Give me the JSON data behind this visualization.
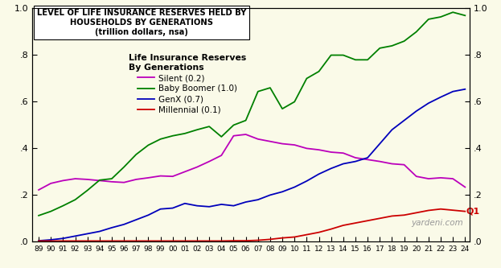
{
  "title_line1": "LEVEL OF LIFE INSURANCE RESERVES HELD BY",
  "title_line2": "HOUSEHOLDS BY GENERATIONS",
  "title_line3": "(trillion dollars, nsa)",
  "legend_title": "Life Insurance Reserves\nBy Generations",
  "background_color": "#FAFAE8",
  "watermark": "yardeni.com",
  "q1_label": "Q1",
  "xlim": [
    1988.5,
    2024.4
  ],
  "ylim": [
    0.0,
    1.0
  ],
  "yticks": [
    0.0,
    0.2,
    0.4,
    0.6,
    0.8,
    1.0
  ],
  "ytick_labels": [
    ".0",
    ".2",
    ".4",
    ".6",
    ".8",
    "1.0"
  ],
  "xtick_positions": [
    1989,
    1990,
    1991,
    1992,
    1993,
    1994,
    1995,
    1996,
    1997,
    1998,
    1999,
    2000,
    2001,
    2002,
    2003,
    2004,
    2005,
    2006,
    2007,
    2008,
    2009,
    2010,
    2011,
    2012,
    2013,
    2014,
    2015,
    2016,
    2017,
    2018,
    2019,
    2020,
    2021,
    2022,
    2023,
    2024
  ],
  "xtick_labels": [
    "89",
    "90",
    "91",
    "92",
    "93",
    "94",
    "95",
    "96",
    "97",
    "98",
    "99",
    "00",
    "01",
    "02",
    "03",
    "04",
    "05",
    "06",
    "07",
    "08",
    "09",
    "10",
    "11",
    "12",
    "13",
    "14",
    "15",
    "16",
    "17",
    "18",
    "19",
    "20",
    "21",
    "22",
    "23",
    "24"
  ],
  "series": {
    "silent": {
      "label": "Silent (0.2)",
      "color": "#BB00BB",
      "x": [
        1989,
        1990,
        1991,
        1992,
        1993,
        1994,
        1995,
        1996,
        1997,
        1998,
        1999,
        2000,
        2001,
        2002,
        2003,
        2004,
        2005,
        2006,
        2007,
        2008,
        2009,
        2010,
        2011,
        2012,
        2013,
        2014,
        2015,
        2016,
        2017,
        2018,
        2019,
        2020,
        2021,
        2022,
        2023,
        2024
      ],
      "y": [
        0.22,
        0.248,
        0.26,
        0.268,
        0.265,
        0.26,
        0.255,
        0.252,
        0.265,
        0.272,
        0.28,
        0.278,
        0.298,
        0.318,
        0.342,
        0.368,
        0.452,
        0.458,
        0.438,
        0.428,
        0.418,
        0.413,
        0.398,
        0.392,
        0.382,
        0.378,
        0.358,
        0.35,
        0.342,
        0.332,
        0.328,
        0.278,
        0.268,
        0.272,
        0.268,
        0.232
      ]
    },
    "boomer": {
      "label": "Baby Boomer (1.0)",
      "color": "#008000",
      "x": [
        1989,
        1990,
        1991,
        1992,
        1993,
        1994,
        1995,
        1996,
        1997,
        1998,
        1999,
        2000,
        2001,
        2002,
        2003,
        2004,
        2005,
        2006,
        2007,
        2008,
        2009,
        2010,
        2011,
        2012,
        2013,
        2014,
        2015,
        2016,
        2017,
        2018,
        2019,
        2020,
        2021,
        2022,
        2023,
        2024
      ],
      "y": [
        0.11,
        0.128,
        0.152,
        0.178,
        0.218,
        0.262,
        0.268,
        0.318,
        0.372,
        0.412,
        0.438,
        0.452,
        0.462,
        0.478,
        0.492,
        0.448,
        0.498,
        0.518,
        0.642,
        0.658,
        0.568,
        0.598,
        0.698,
        0.728,
        0.798,
        0.798,
        0.778,
        0.778,
        0.828,
        0.838,
        0.858,
        0.898,
        0.952,
        0.962,
        0.982,
        0.968
      ]
    },
    "genx": {
      "label": "GenX (0.7)",
      "color": "#0000BB",
      "x": [
        1989,
        1990,
        1991,
        1992,
        1993,
        1994,
        1995,
        1996,
        1997,
        1998,
        1999,
        2000,
        2001,
        2002,
        2003,
        2004,
        2005,
        2006,
        2007,
        2008,
        2009,
        2010,
        2011,
        2012,
        2013,
        2014,
        2015,
        2016,
        2017,
        2018,
        2019,
        2020,
        2021,
        2022,
        2023,
        2024
      ],
      "y": [
        0.002,
        0.006,
        0.012,
        0.022,
        0.032,
        0.042,
        0.058,
        0.072,
        0.092,
        0.112,
        0.138,
        0.142,
        0.162,
        0.152,
        0.148,
        0.158,
        0.152,
        0.168,
        0.178,
        0.198,
        0.212,
        0.232,
        0.258,
        0.288,
        0.312,
        0.332,
        0.342,
        0.358,
        0.418,
        0.478,
        0.518,
        0.558,
        0.592,
        0.618,
        0.642,
        0.652
      ]
    },
    "millennial": {
      "label": "Millennial (0.1)",
      "color": "#CC0000",
      "x": [
        1989,
        1990,
        1991,
        1992,
        1993,
        1994,
        1995,
        1996,
        1997,
        1998,
        1999,
        2000,
        2001,
        2002,
        2003,
        2004,
        2005,
        2006,
        2007,
        2008,
        2009,
        2010,
        2011,
        2012,
        2013,
        2014,
        2015,
        2016,
        2017,
        2018,
        2019,
        2020,
        2021,
        2022,
        2023,
        2024
      ],
      "y": [
        0.001,
        0.001,
        0.001,
        0.001,
        0.001,
        0.001,
        0.001,
        0.001,
        0.001,
        0.001,
        0.001,
        0.001,
        0.001,
        0.001,
        0.001,
        0.001,
        0.002,
        0.002,
        0.004,
        0.008,
        0.014,
        0.018,
        0.028,
        0.038,
        0.052,
        0.068,
        0.078,
        0.088,
        0.098,
        0.108,
        0.112,
        0.122,
        0.132,
        0.138,
        0.133,
        0.128
      ]
    }
  }
}
